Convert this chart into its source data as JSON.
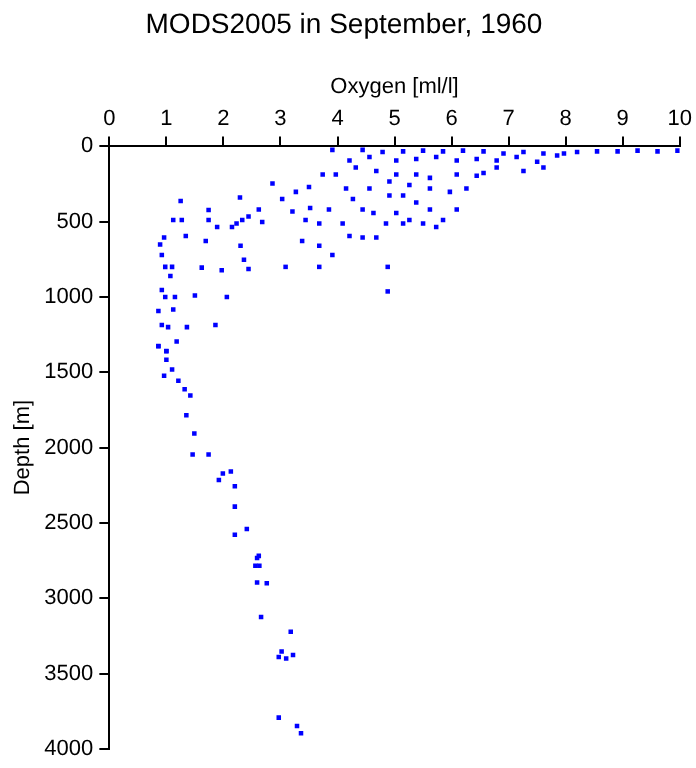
{
  "chart_data": {
    "type": "scatter",
    "title": "MODS2005 in September, 1960",
    "xlabel": "Oxygen [ml/l]",
    "ylabel": "Depth [m]",
    "xlim": [
      0,
      10
    ],
    "xticks": [
      0,
      1,
      2,
      3,
      4,
      5,
      6,
      7,
      8,
      9,
      10
    ],
    "ylim": [
      4000,
      0
    ],
    "yticks": [
      0,
      500,
      1000,
      1500,
      2000,
      2500,
      3000,
      3500,
      4000
    ],
    "grid": false,
    "legend": false,
    "marker": "square",
    "series": [
      {
        "color": "#0000ff",
        "x": [
          0.86,
          1.18,
          1.0,
          1.0,
          1.1,
          0.96,
          1.21,
          1.32,
          1.42,
          1.35,
          1.49,
          1.46,
          1.74,
          1.99,
          2.13,
          1.92,
          2.2,
          2.2,
          2.41,
          2.2,
          2.62,
          2.59,
          2.56,
          2.63,
          2.59,
          2.76,
          2.66,
          3.18,
          3.02,
          2.97,
          3.1,
          3.22,
          2.97,
          3.29,
          3.36,
          3.91,
          4.44,
          4.79,
          5.15,
          5.5,
          5.85,
          6.2,
          6.56,
          6.91,
          7.26,
          7.61,
          7.97,
          8.2,
          8.55,
          8.91,
          9.26,
          9.61,
          9.96,
          4.21,
          4.56,
          5.03,
          5.38,
          5.73,
          6.09,
          6.44,
          6.79,
          7.14,
          7.5,
          7.85,
          7.61,
          7.26,
          6.79,
          3.97,
          4.32,
          4.68,
          5.03,
          5.38,
          5.62,
          6.09,
          6.44,
          6.56,
          4.91,
          5.26,
          5.62,
          5.97,
          6.26,
          5.15,
          5.38,
          5.62,
          5.03,
          5.26,
          5.5,
          5.73,
          5.15,
          4.91,
          4.63,
          4.56,
          4.15,
          4.27,
          4.44,
          4.85,
          4.68,
          4.44,
          4.21,
          4.09,
          3.68,
          3.38,
          3.68,
          3.91,
          3.09,
          3.68,
          4.88,
          4.88,
          5.85,
          6.09,
          2.86,
          3.03,
          3.27,
          3.5,
          3.74,
          2.62,
          2.44,
          2.33,
          2.15,
          2.23,
          2.68,
          3.21,
          3.52,
          3.85,
          3.44,
          1.25,
          2.29,
          1.74,
          1.12,
          1.27,
          1.74,
          1.89,
          0.96,
          1.34,
          1.69,
          0.89,
          2.3,
          0.92,
          0.98,
          1.1,
          1.62,
          2.36,
          2.44,
          1.07,
          1.97,
          0.92,
          0.98,
          1.15,
          1.5,
          2.06,
          0.86,
          1.12,
          0.92,
          1.03,
          1.36,
          1.86,
          0.86,
          1.0
        ],
        "values": [
          1327,
          1295,
          1360,
          1416,
          1481,
          1523,
          1556,
          1612,
          1654,
          1785,
          1906,
          2046,
          2046,
          2172,
          2158,
          2215,
          2257,
          2392,
          2541,
          2579,
          2719,
          2733,
          2784,
          2784,
          2896,
          2901,
          3125,
          3223,
          3354,
          3391,
          3401,
          3377,
          3793,
          3849,
          3896,
          23,
          23,
          37,
          33,
          28,
          33,
          28,
          33,
          47,
          37,
          47,
          47,
          37,
          33,
          33,
          28,
          33,
          28,
          93,
          70,
          93,
          84,
          70,
          93,
          84,
          93,
          70,
          102,
          60,
          140,
          163,
          140,
          186,
          140,
          163,
          186,
          186,
          209,
          186,
          195,
          177,
          233,
          256,
          279,
          302,
          279,
          326,
          372,
          419,
          442,
          488,
          512,
          535,
          512,
          326,
          442,
          279,
          279,
          349,
          419,
          512,
          605,
          605,
          595,
          512,
          512,
          628,
          660,
          721,
          800,
          800,
          800,
          963,
          488,
          419,
          247,
          349,
          302,
          270,
          186,
          419,
          465,
          488,
          535,
          512,
          502,
          432,
          409,
          419,
          488,
          363,
          340,
          423,
          488,
          488,
          488,
          535,
          605,
          595,
          628,
          651,
          660,
          721,
          800,
          800,
          805,
          753,
          814,
          860,
          823,
          953,
          1000,
          1000,
          990,
          1000,
          1093,
          1083,
          1186,
          1200,
          1200,
          1186,
          1325,
          1358
        ]
      }
    ]
  }
}
